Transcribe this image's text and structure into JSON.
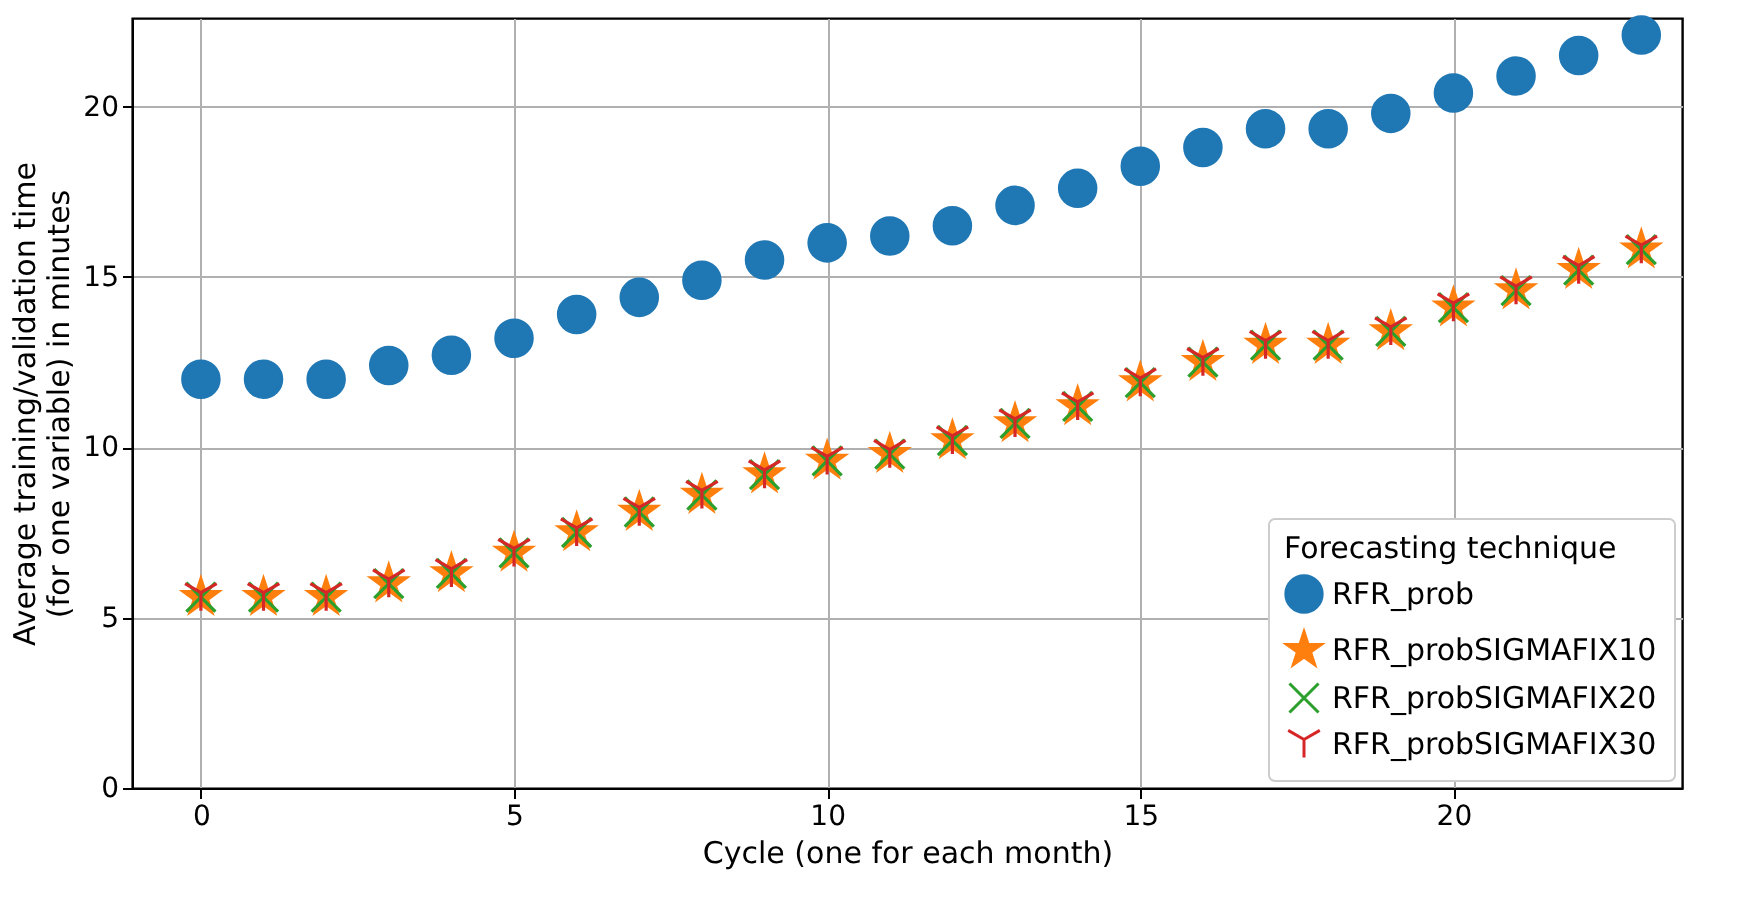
{
  "chart_data": {
    "type": "scatter",
    "xlabel": "Cycle (one for each month)",
    "ylabel": "Average training/validation time\n(for one variable) in minutes",
    "legend_title": "Forecasting technique",
    "x": [
      0,
      1,
      2,
      3,
      4,
      5,
      6,
      7,
      8,
      9,
      10,
      11,
      12,
      13,
      14,
      15,
      16,
      17,
      18,
      19,
      20,
      21,
      22,
      23
    ],
    "series": [
      {
        "name": "RFR_prob",
        "color": "#1f77b4",
        "marker": "circle",
        "values": [
          12.0,
          12.0,
          12.0,
          12.4,
          12.7,
          13.2,
          13.9,
          14.4,
          14.9,
          15.5,
          16.0,
          16.2,
          16.5,
          17.1,
          17.6,
          18.25,
          18.8,
          19.35,
          19.35,
          19.8,
          20.4,
          20.9,
          21.5,
          22.1
        ]
      },
      {
        "name": "RFR_probSIGMAFIX10",
        "color": "#ff7f0e",
        "marker": "star",
        "values": [
          5.6,
          5.6,
          5.6,
          6.0,
          6.3,
          6.9,
          7.5,
          8.1,
          8.6,
          9.2,
          9.6,
          9.8,
          10.2,
          10.7,
          11.2,
          11.9,
          12.5,
          13.0,
          13.0,
          13.4,
          14.1,
          14.6,
          15.2,
          15.8
        ]
      },
      {
        "name": "RFR_probSIGMAFIX20",
        "color": "#2ca02c",
        "marker": "cross",
        "values": [
          5.6,
          5.6,
          5.6,
          6.0,
          6.3,
          6.9,
          7.5,
          8.1,
          8.6,
          9.2,
          9.6,
          9.8,
          10.2,
          10.7,
          11.2,
          11.9,
          12.5,
          13.0,
          13.0,
          13.4,
          14.1,
          14.6,
          15.2,
          15.8
        ]
      },
      {
        "name": "RFR_probSIGMAFIX30",
        "color": "#d62728",
        "values": [
          5.6,
          5.6,
          5.6,
          6.0,
          6.3,
          6.9,
          7.5,
          8.1,
          8.6,
          9.2,
          9.6,
          9.8,
          10.2,
          10.7,
          11.2,
          11.9,
          12.5,
          13.0,
          13.0,
          13.4,
          14.1,
          14.6,
          15.2,
          15.8
        ]
      }
    ],
    "xlim": [
      -1.1,
      23.65
    ],
    "ylim": [
      0,
      22.6
    ],
    "xticks": [
      0,
      5,
      10,
      15,
      20
    ],
    "yticks": [
      0,
      5,
      10,
      15,
      20
    ],
    "grid": true,
    "legend": "bottom right"
  }
}
